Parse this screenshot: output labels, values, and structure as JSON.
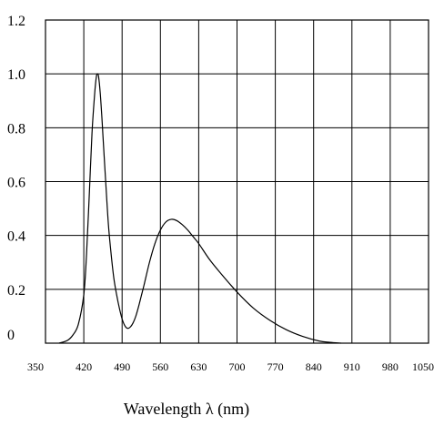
{
  "chart_data": {
    "type": "line",
    "title": "",
    "xlabel": "Wavelength λ (nm)",
    "ylabel": "",
    "xlim": [
      350,
      1050
    ],
    "ylim": [
      0,
      1.2
    ],
    "grid": true,
    "x_ticks": [
      350,
      420,
      490,
      560,
      630,
      700,
      770,
      840,
      910,
      980,
      1050
    ],
    "x_tick_labels": [
      "350",
      "420",
      "490",
      "560",
      "630",
      "700",
      "770",
      "840",
      "910",
      "980",
      "1050"
    ],
    "y_ticks": [
      0,
      0.2,
      0.4,
      0.6,
      0.8,
      1.0,
      1.2
    ],
    "y_tick_labels": [
      "0",
      "0.2",
      "0.4",
      "0.6",
      "0.8",
      "1.0",
      "1.2"
    ],
    "series": [
      {
        "color": "#000000",
        "x": [
          375,
          390,
          400,
          410,
          420,
          425,
          430,
          435,
          440,
          443,
          445,
          447,
          450,
          453,
          455,
          460,
          465,
          470,
          475,
          480,
          485,
          490,
          495,
          500,
          505,
          510,
          515,
          520,
          525,
          530,
          540,
          550,
          560,
          570,
          580,
          590,
          600,
          610,
          620,
          630,
          650,
          670,
          700,
          730,
          760,
          790,
          820,
          850,
          870,
          890
        ],
        "values": [
          0.0,
          0.01,
          0.03,
          0.07,
          0.18,
          0.33,
          0.55,
          0.78,
          0.93,
          0.99,
          1.0,
          0.99,
          0.93,
          0.84,
          0.77,
          0.6,
          0.44,
          0.33,
          0.24,
          0.18,
          0.13,
          0.09,
          0.065,
          0.055,
          0.06,
          0.075,
          0.1,
          0.135,
          0.175,
          0.215,
          0.3,
          0.37,
          0.42,
          0.45,
          0.46,
          0.455,
          0.44,
          0.42,
          0.395,
          0.37,
          0.31,
          0.26,
          0.19,
          0.13,
          0.085,
          0.05,
          0.025,
          0.008,
          0.003,
          0.0
        ]
      }
    ]
  }
}
